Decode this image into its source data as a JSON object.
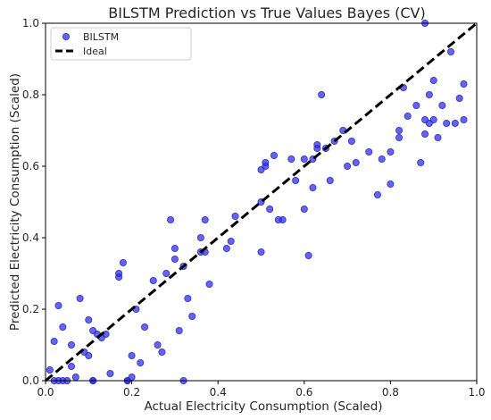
{
  "chart_data": {
    "type": "scatter",
    "title": "BILSTM Prediction vs True Values Bayes (CV)",
    "xlabel": "Actual Electricity Consumption (Scaled)",
    "ylabel": "Predicted Electricity Consumption (Scaled)",
    "xlim": [
      0,
      1
    ],
    "ylim": [
      0,
      1
    ],
    "xticks": [
      "0.0",
      "0.2",
      "0.4",
      "0.6",
      "0.8",
      "1.0"
    ],
    "yticks": [
      "0.0",
      "0.2",
      "0.4",
      "0.6",
      "0.8",
      "1.0"
    ],
    "grid": false,
    "legend_position": "top-left",
    "series": [
      {
        "name": "BILSTM",
        "kind": "scatter",
        "color": "#2b2bd9",
        "x": [
          0.01,
          0.03,
          0.02,
          0.04,
          0.06,
          0.05,
          0.08,
          0.07,
          0.1,
          0.11,
          0.12,
          0.1,
          0.15,
          0.14,
          0.17,
          0.18,
          0.19,
          0.2,
          0.21,
          0.22,
          0.25,
          0.26,
          0.28,
          0.29,
          0.3,
          0.31,
          0.32,
          0.33,
          0.34,
          0.36,
          0.37,
          0.38,
          0.42,
          0.43,
          0.5,
          0.52,
          0.55,
          0.58,
          0.6,
          0.61,
          0.63,
          0.65,
          0.67,
          0.7,
          0.72,
          0.75,
          0.77,
          0.8,
          0.82,
          0.84,
          0.86,
          0.88,
          0.89,
          0.9,
          0.91,
          0.93,
          0.95,
          0.97,
          0.97,
          0.17,
          0.06,
          0.04,
          0.03,
          0.11,
          0.13,
          0.19,
          0.2,
          0.23,
          0.27,
          0.3,
          0.32,
          0.36,
          0.37,
          0.44,
          0.5,
          0.51,
          0.51,
          0.53,
          0.54,
          0.57,
          0.6,
          0.62,
          0.63,
          0.64,
          0.66,
          0.69,
          0.71,
          0.78,
          0.8,
          0.82,
          0.83,
          0.87,
          0.88,
          0.89,
          0.9,
          0.92,
          0.94,
          0.96,
          0.88,
          0.62,
          0.5,
          0.02,
          0.09,
          0.11
        ],
        "y": [
          0.03,
          0.21,
          0.11,
          0.15,
          0.04,
          0.0,
          0.23,
          0.01,
          0.17,
          0.14,
          0.13,
          0.07,
          0.02,
          0.13,
          0.29,
          0.33,
          0.0,
          0.07,
          0.2,
          0.05,
          0.28,
          0.1,
          0.3,
          0.45,
          0.34,
          0.14,
          0.32,
          0.23,
          0.18,
          0.4,
          0.36,
          0.27,
          0.37,
          0.39,
          0.36,
          0.48,
          0.45,
          0.56,
          0.62,
          0.35,
          0.65,
          0.65,
          0.67,
          0.6,
          0.61,
          0.64,
          0.52,
          0.55,
          0.7,
          0.74,
          0.77,
          0.69,
          0.72,
          0.73,
          0.68,
          0.72,
          0.72,
          0.73,
          0.83,
          0.3,
          0.1,
          0.0,
          0.0,
          0.0,
          0.12,
          0.0,
          0.01,
          0.15,
          0.08,
          0.37,
          0.0,
          0.36,
          0.45,
          0.46,
          0.59,
          0.6,
          0.61,
          0.63,
          0.45,
          0.62,
          0.48,
          0.62,
          0.66,
          0.8,
          0.56,
          0.7,
          0.67,
          0.62,
          0.64,
          0.68,
          0.82,
          0.61,
          0.73,
          0.8,
          0.84,
          0.77,
          0.92,
          0.79,
          1.0,
          0.54,
          0.5,
          0.0,
          0.08,
          0.0
        ]
      },
      {
        "name": "Ideal",
        "kind": "line",
        "style": "dashed",
        "color": "#000000",
        "x": [
          0,
          1
        ],
        "y": [
          0,
          1
        ]
      }
    ]
  }
}
